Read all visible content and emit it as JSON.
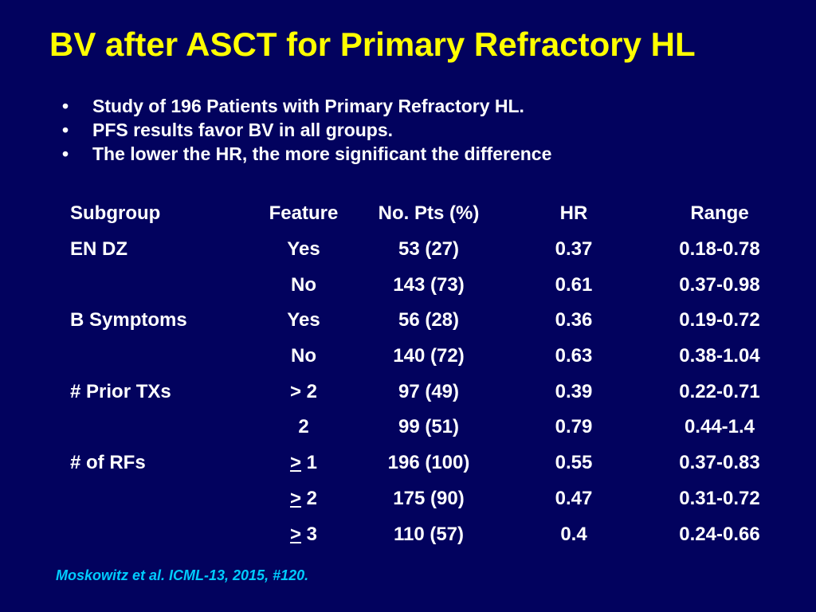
{
  "slide": {
    "title": "BV after ASCT for Primary Refractory HL",
    "bullet_marker": "•",
    "bullets": [
      "Study of 196 Patients with Primary Refractory HL.",
      "PFS results favor BV in all groups.",
      "The lower the HR, the more significant the difference"
    ],
    "table": {
      "headers": [
        "Subgroup",
        "Feature",
        "No. Pts (%)",
        "HR",
        "Range"
      ],
      "rows": [
        {
          "subgroup": "EN DZ",
          "feature_prefix": "",
          "feature": "Yes",
          "pts": "53 (27)",
          "hr": "0.37",
          "range": "0.18-0.78"
        },
        {
          "subgroup": "",
          "feature_prefix": "",
          "feature": "No",
          "pts": "143 (73)",
          "hr": "0.61",
          "range": "0.37-0.98"
        },
        {
          "subgroup": "B Symptoms",
          "feature_prefix": "",
          "feature": "Yes",
          "pts": "56 (28)",
          "hr": "0.36",
          "range": "0.19-0.72"
        },
        {
          "subgroup": "",
          "feature_prefix": "",
          "feature": "No",
          "pts": "140 (72)",
          "hr": "0.63",
          "range": "0.38-1.04"
        },
        {
          "subgroup": "# Prior TXs",
          "feature_prefix": "",
          "feature": "> 2",
          "pts": "97 (49)",
          "hr": "0.39",
          "range": "0.22-0.71"
        },
        {
          "subgroup": "",
          "feature_prefix": "",
          "feature": "2",
          "pts": "99 (51)",
          "hr": "0.79",
          "range": "0.44-1.4"
        },
        {
          "subgroup": "# of RFs",
          "feature_prefix": ">",
          "feature": " 1",
          "pts": "196 (100)",
          "hr": "0.55",
          "range": "0.37-0.83"
        },
        {
          "subgroup": "",
          "feature_prefix": ">",
          "feature": " 2",
          "pts": "175 (90)",
          "hr": "0.47",
          "range": "0.31-0.72"
        },
        {
          "subgroup": "",
          "feature_prefix": ">",
          "feature": " 3",
          "pts": "110 (57)",
          "hr": "0.4",
          "range": "0.24-0.66"
        }
      ]
    },
    "citation": "Moskowitz et al. ICML-13, 2015, #120."
  },
  "colors": {
    "background": "#02025e",
    "title": "#ffff00",
    "body_text": "#ffffff",
    "citation": "#00ccff"
  }
}
